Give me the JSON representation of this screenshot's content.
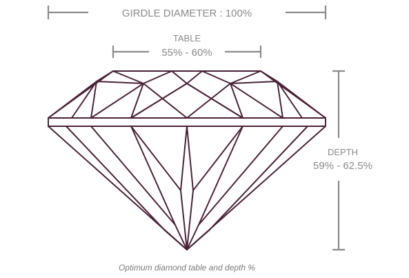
{
  "diagram": {
    "girdle_label": "GIRDLE DIAMETER : 100%",
    "table_label": "TABLE",
    "table_value": "55% - 60%",
    "depth_label": "DEPTH",
    "depth_value": "59% - 62.5%",
    "caption": "Optimum diamond table and depth %"
  },
  "colors": {
    "outline": "#4a2238",
    "dimension_lines": "#8a8a8a",
    "text": "#8a8a8a"
  }
}
